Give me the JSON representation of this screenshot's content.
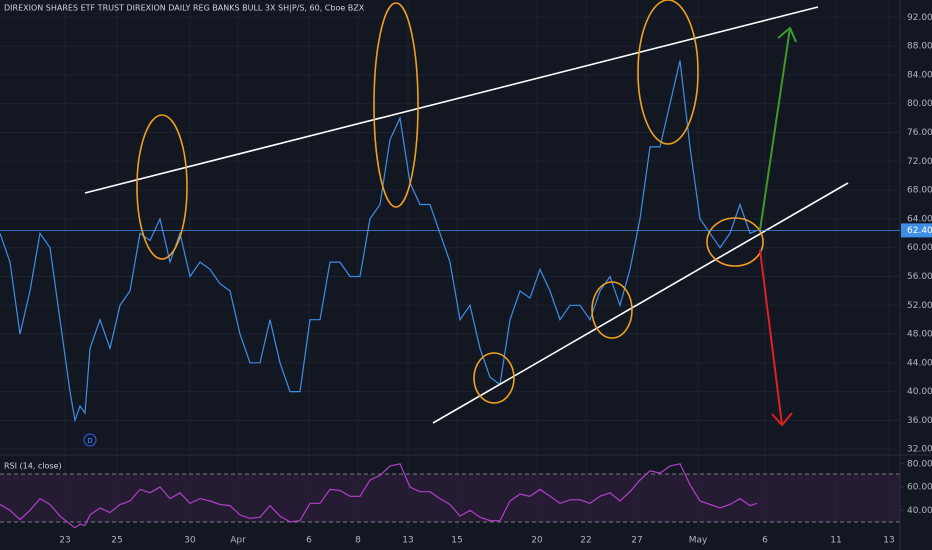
{
  "chart_data": {
    "type": "line",
    "title": "DIREXION SHARES ETF TRUST DIREXION DAILY REG BANKS BULL 3X SH|P/S, 60, Cboe BZX",
    "marker_label": "D",
    "x": [
      0,
      2,
      4,
      6,
      8,
      10,
      12,
      14,
      15,
      16,
      17,
      18,
      20,
      22,
      24,
      26,
      28,
      30,
      32,
      34,
      36,
      38,
      40,
      42,
      44,
      46,
      48,
      50,
      52,
      54,
      56,
      58,
      60,
      62,
      64,
      66,
      68,
      70,
      72,
      74,
      76,
      78,
      80,
      82,
      84,
      86,
      88,
      90,
      92,
      94,
      96,
      98,
      100,
      102,
      104,
      106,
      108,
      110,
      112,
      114,
      116,
      118,
      120,
      122,
      124,
      126,
      128,
      130,
      132,
      134,
      136,
      138,
      140,
      142,
      144,
      146,
      148,
      150,
      151.4
    ],
    "xlim": [
      0,
      180
    ],
    "xticks": [
      {
        "value": 13,
        "label": "23"
      },
      {
        "value": 23.4,
        "label": "25"
      },
      {
        "value": 38,
        "label": "30"
      },
      {
        "value": 47.6,
        "label": "Apr"
      },
      {
        "value": 61.8,
        "label": "6"
      },
      {
        "value": 71.6,
        "label": "8"
      },
      {
        "value": 81.6,
        "label": "13"
      },
      {
        "value": 91.4,
        "label": "15"
      },
      {
        "value": 107.4,
        "label": "20"
      },
      {
        "value": 117.2,
        "label": "22"
      },
      {
        "value": 127.4,
        "label": "27"
      },
      {
        "value": 139.6,
        "label": "May"
      },
      {
        "value": 153,
        "label": "6"
      },
      {
        "value": 167.2,
        "label": "11"
      },
      {
        "value": 177.8,
        "label": "13"
      }
    ],
    "series": [
      {
        "color": "#3f8ee6",
        "values": [
          62,
          58,
          48,
          54,
          62,
          60,
          50,
          40,
          36,
          38,
          37,
          46,
          50,
          46,
          52,
          54,
          62,
          61,
          64,
          58,
          62,
          56,
          58,
          57,
          55,
          54,
          48,
          44,
          44,
          50,
          44,
          40,
          40,
          50,
          50,
          58,
          58,
          56,
          56,
          64,
          66,
          75,
          78,
          69,
          66,
          66,
          62,
          58,
          50,
          52,
          46,
          42,
          41,
          50,
          54,
          53,
          57,
          54,
          50,
          52,
          52,
          50,
          54,
          56,
          52,
          57,
          64,
          74,
          74,
          80,
          86,
          74,
          64,
          62,
          60,
          62,
          66,
          62,
          62.4
        ]
      }
    ],
    "ylim": [
      31.2,
      94.4
    ],
    "yticks": [
      {
        "value": 32,
        "label": "32.00"
      },
      {
        "value": 36,
        "label": "36.00"
      },
      {
        "value": 40,
        "label": "40.00"
      },
      {
        "value": 44,
        "label": "44.00"
      },
      {
        "value": 48,
        "label": "48.00"
      },
      {
        "value": 52,
        "label": "52.00"
      },
      {
        "value": 56,
        "label": "56.00"
      },
      {
        "value": 60,
        "label": "60.00"
      },
      {
        "value": 64,
        "label": "64.00"
      },
      {
        "value": 68,
        "label": "68.00"
      },
      {
        "value": 72,
        "label": "72.00"
      },
      {
        "value": 76,
        "label": "76.00"
      },
      {
        "value": 80,
        "label": "80.00"
      },
      {
        "value": 84,
        "label": "84.00"
      },
      {
        "value": 88,
        "label": "88.00"
      },
      {
        "value": 92,
        "label": "92.00"
      }
    ],
    "last_value": {
      "value": 62.4,
      "label": "62.40"
    },
    "grid": true,
    "rsi": {
      "name": "RSI (14, close)",
      "color": "#b040c8",
      "values": [
        45,
        40,
        32,
        40,
        50,
        45,
        35,
        28,
        25,
        28,
        27,
        36,
        42,
        38,
        45,
        48,
        58,
        55,
        60,
        50,
        55,
        46,
        50,
        48,
        45,
        44,
        36,
        33,
        34,
        44,
        35,
        30,
        31,
        46,
        46,
        58,
        57,
        52,
        52,
        66,
        70,
        78,
        80,
        60,
        56,
        56,
        50,
        45,
        35,
        40,
        34,
        31,
        31,
        48,
        54,
        52,
        58,
        52,
        46,
        49,
        49,
        46,
        52,
        55,
        48,
        56,
        66,
        74,
        72,
        78,
        80,
        62,
        48,
        45,
        42,
        45,
        50,
        44,
        46
      ],
      "ylim": [
        23,
        85
      ],
      "yticks": [
        {
          "value": 40,
          "label": "40.00"
        },
        {
          "value": 60,
          "label": "60.00"
        },
        {
          "value": 80,
          "label": "80.00"
        }
      ]
    }
  }
}
